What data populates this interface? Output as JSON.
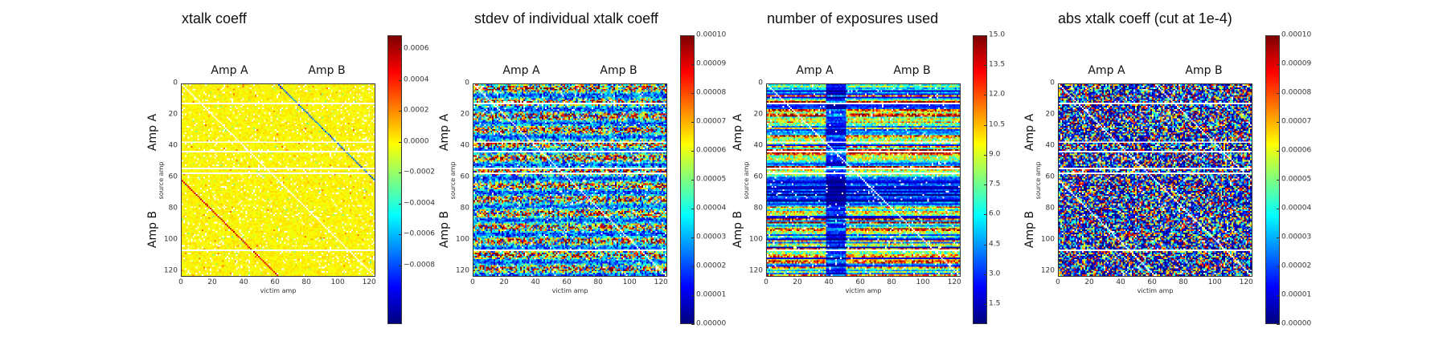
{
  "chart_data": [
    {
      "type": "heatmap",
      "title": "xtalk coeff",
      "xlabel": "victim amp",
      "ylabel": "source amp",
      "group_labels": [
        "Amp A",
        "Amp B"
      ],
      "xticks": [
        "0",
        "20",
        "40",
        "60",
        "80",
        "100",
        "120"
      ],
      "yticks": [
        "0",
        "20",
        "40",
        "60",
        "80",
        "100",
        "120"
      ],
      "n_amps": 124,
      "colormap": "jet",
      "colorbar": {
        "vmin": -0.00118,
        "vmax": 0.00069,
        "ticks": [
          0.0006,
          0.0004,
          0.0002,
          0.0,
          -0.0002,
          -0.0004,
          -0.0006,
          -0.0008
        ],
        "tick_labels": [
          "0.0006",
          "0.0004",
          "0.0002",
          "0.0000",
          "−0.0002",
          "−0.0004",
          "−0.0006",
          "−0.0008"
        ]
      },
      "masked_rows": [
        12,
        37,
        43,
        54,
        57,
        107
      ],
      "pattern": "near-zero background (~0); self-diagonal masked; Amp A→Amp B cross-diagonal negative (~-0.0006 to -0.0009); Amp B→Amp A cross-diagonal positive (~0.0004 to 0.0006)"
    },
    {
      "type": "heatmap",
      "title": "stdev of individual xtalk coeff",
      "xlabel": "victim amp",
      "ylabel": "source amp",
      "group_labels": [
        "Amp A",
        "Amp B"
      ],
      "xticks": [
        "0",
        "20",
        "40",
        "60",
        "80",
        "100",
        "120"
      ],
      "yticks": [
        "0",
        "20",
        "40",
        "60",
        "80",
        "100",
        "120"
      ],
      "n_amps": 124,
      "colormap": "jet",
      "colorbar": {
        "vmin": 0.0,
        "vmax": 0.0001,
        "ticks": [
          0.0001,
          9e-05,
          8e-05,
          7e-05,
          6e-05,
          5e-05,
          4e-05,
          3e-05,
          2e-05,
          1e-05,
          0.0
        ],
        "tick_labels": [
          "0.00010",
          "0.00009",
          "0.00008",
          "0.00007",
          "0.00006",
          "0.00005",
          "0.00004",
          "0.00003",
          "0.00002",
          "0.00001",
          "0.00000"
        ]
      },
      "masked_rows": [
        12,
        37,
        43,
        54,
        57,
        107
      ],
      "pattern": "noisy values spread over 0 to 0.0001"
    },
    {
      "type": "heatmap",
      "title": "number of exposures used",
      "xlabel": "victim amp",
      "ylabel": "source amp",
      "group_labels": [
        "Amp A",
        "Amp B"
      ],
      "xticks": [
        "0",
        "20",
        "40",
        "60",
        "80",
        "100",
        "120"
      ],
      "yticks": [
        "0",
        "20",
        "40",
        "60",
        "80",
        "100",
        "120"
      ],
      "n_amps": 124,
      "colormap": "jet",
      "colorbar": {
        "vmin": 0.5,
        "vmax": 15.0,
        "ticks": [
          15.0,
          13.5,
          12.0,
          10.5,
          9.0,
          7.5,
          6.0,
          4.5,
          3.0,
          1.5
        ],
        "tick_labels": [
          "15.0",
          "13.5",
          "12.0",
          "10.5",
          "9.0",
          "7.5",
          "6.0",
          "4.5",
          "3.0",
          "1.5"
        ]
      },
      "masked_rows": [
        12,
        37,
        43,
        54,
        57,
        107
      ],
      "pattern": "row-banded counts; victim amps ~40-50 and source amps ~60-75 low"
    },
    {
      "type": "heatmap",
      "title": "abs xtalk coeff (cut at 1e-4)",
      "xlabel": "victim amp",
      "ylabel": "source amp",
      "group_labels": [
        "Amp A",
        "Amp B"
      ],
      "xticks": [
        "0",
        "20",
        "40",
        "60",
        "80",
        "100",
        "120"
      ],
      "yticks": [
        "0",
        "20",
        "40",
        "60",
        "80",
        "100",
        "120"
      ],
      "n_amps": 124,
      "colormap": "jet",
      "colorbar": {
        "vmin": 0.0,
        "vmax": 0.0001,
        "ticks": [
          0.0001,
          9e-05,
          8e-05,
          7e-05,
          6e-05,
          5e-05,
          4e-05,
          3e-05,
          2e-05,
          1e-05,
          0.0
        ],
        "tick_labels": [
          "0.00010",
          "0.00009",
          "0.00008",
          "0.00007",
          "0.00006",
          "0.00005",
          "0.00004",
          "0.00003",
          "0.00002",
          "0.00001",
          "0.00000"
        ]
      },
      "masked_rows": [
        12,
        37,
        43,
        54,
        57,
        107
      ],
      "pattern": "mostly low (blue) with sparse higher values; cross-diagonals masked above cut"
    }
  ]
}
